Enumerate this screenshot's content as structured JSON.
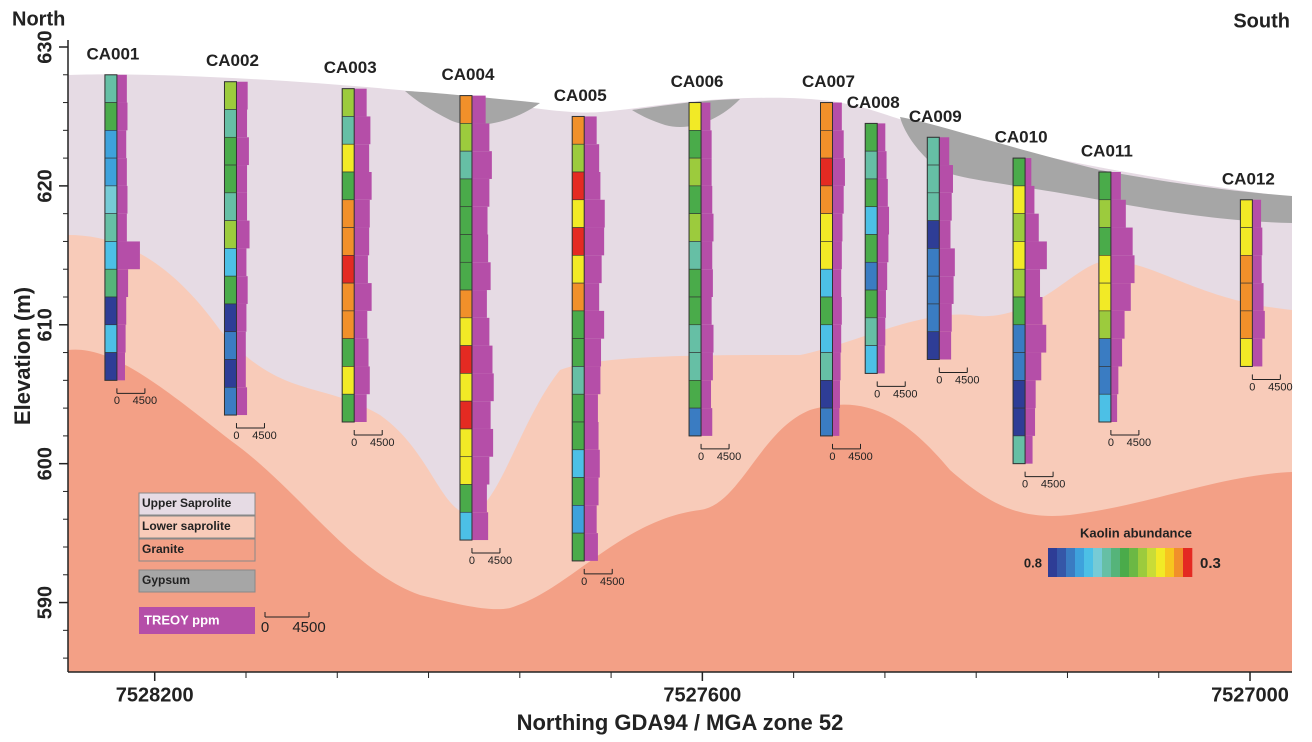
{
  "chart_data": {
    "type": "cross-section",
    "left_label": "North",
    "right_label": "South",
    "xlabel": "Northing GDA94 / MGA zone 52",
    "ylabel": "Elevation (m)",
    "xlim": [
      7528295,
      7526954
    ],
    "xticks": [
      7528200,
      7527600,
      7527000
    ],
    "xminorticks": [
      7528100,
      7528000,
      7527900,
      7527800,
      7527700,
      7527500,
      7527400,
      7527300,
      7527200,
      7527100
    ],
    "ylim": [
      585,
      630
    ],
    "yticks": [
      590,
      600,
      610,
      620,
      630
    ],
    "yminorticks": [
      586,
      588,
      592,
      594,
      596,
      598,
      602,
      604,
      606,
      608,
      612,
      614,
      616,
      618,
      622,
      624,
      626,
      628
    ],
    "layers": [
      {
        "name": "Upper Saprolite",
        "color": "#e6dbe4"
      },
      {
        "name": "Lower saprolite",
        "color": "#f8cbb9"
      },
      {
        "name": "Granite",
        "color": "#f3a086"
      },
      {
        "name": "Gypsum",
        "color": "#a6a6a6"
      }
    ],
    "treoy": {
      "name": "TREOY ppm",
      "color": "#b54ea8",
      "scale": [
        0,
        4500
      ]
    },
    "kaolin_legend": {
      "title": "Kaolin abundance",
      "range": [
        0.8,
        0.3
      ],
      "colors": [
        "#2e3d96",
        "#3557a8",
        "#3a7cc2",
        "#3ea2dc",
        "#4cc0e6",
        "#76cbd6",
        "#66bfa5",
        "#55b47a",
        "#4aab4a",
        "#6cb844",
        "#9ccb3d",
        "#c9dc37",
        "#f2ea26",
        "#f7c51f",
        "#f1902a",
        "#e42a22"
      ]
    },
    "holes": [
      {
        "name": "CA001",
        "northing": 7528248,
        "top": 628,
        "bottom": 606,
        "kaolin": [
          0.6,
          0.53,
          0.7,
          0.7,
          0.63,
          0.6,
          0.67,
          0.57,
          0.8,
          0.67,
          0.8
        ],
        "treoy": [
          1600,
          1700,
          1500,
          1600,
          1700,
          1600,
          3700,
          1800,
          1500,
          1400,
          1300
        ]
      },
      {
        "name": "CA002",
        "northing": 7528117,
        "top": 627.5,
        "bottom": 603.5,
        "kaolin": [
          0.47,
          0.6,
          0.53,
          0.53,
          0.6,
          0.47,
          0.67,
          0.53,
          0.8,
          0.73,
          0.8,
          0.73
        ],
        "treoy": [
          1800,
          1700,
          2000,
          1700,
          1700,
          2100,
          1600,
          1800,
          1600,
          1500,
          1500,
          1700
        ]
      },
      {
        "name": "CA003",
        "northing": 7527988,
        "top": 627,
        "bottom": 603,
        "kaolin": [
          0.47,
          0.6,
          0.4,
          0.53,
          0.33,
          0.33,
          0.3,
          0.33,
          0.32,
          0.53,
          0.4,
          0.53
        ],
        "treoy": [
          2000,
          2600,
          2400,
          2800,
          2500,
          2400,
          2200,
          2800,
          2100,
          2300,
          2500,
          2000
        ]
      },
      {
        "name": "CA004",
        "northing": 7527859,
        "top": 626.5,
        "bottom": 594.5,
        "kaolin": [
          0.33,
          0.47,
          0.6,
          0.53,
          0.53,
          0.53,
          0.53,
          0.33,
          0.4,
          0.3,
          0.4,
          0.3,
          0.4,
          0.4,
          0.53,
          0.67
        ],
        "treoy": [
          2200,
          2800,
          3200,
          2800,
          2500,
          2600,
          3000,
          2400,
          2800,
          3300,
          3500,
          3000,
          3400,
          2800,
          2400,
          2600
        ]
      },
      {
        "name": "CA005",
        "northing": 7527736,
        "top": 625,
        "bottom": 593,
        "kaolin": [
          0.33,
          0.47,
          0.3,
          0.4,
          0.3,
          0.4,
          0.33,
          0.53,
          0.53,
          0.6,
          0.53,
          0.53,
          0.67,
          0.53,
          0.7,
          0.53
        ],
        "treoy": [
          2000,
          2400,
          2600,
          3300,
          3200,
          2800,
          2400,
          3200,
          2700,
          2600,
          2200,
          2300,
          2500,
          2300,
          2000,
          2200
        ]
      },
      {
        "name": "CA006",
        "northing": 7527608,
        "top": 626,
        "bottom": 602,
        "kaolin": [
          0.4,
          0.53,
          0.47,
          0.53,
          0.47,
          0.6,
          0.53,
          0.53,
          0.6,
          0.6,
          0.53,
          0.73
        ],
        "treoy": [
          1500,
          1700,
          1700,
          1800,
          2000,
          1800,
          1900,
          1700,
          2000,
          1900,
          1600,
          1800
        ]
      },
      {
        "name": "CA007",
        "northing": 7527464,
        "top": 626,
        "bottom": 602,
        "kaolin": [
          0.33,
          0.32,
          0.3,
          0.33,
          0.4,
          0.4,
          0.67,
          0.53,
          0.67,
          0.6,
          0.8,
          0.73
        ],
        "treoy": [
          1500,
          1800,
          2000,
          1800,
          1600,
          1500,
          1400,
          1500,
          1400,
          1300,
          1200,
          1100
        ]
      },
      {
        "name": "CA008",
        "northing": 7527415,
        "top": 624.5,
        "bottom": 606.5,
        "kaolin": [
          0.53,
          0.6,
          0.53,
          0.67,
          0.53,
          0.73,
          0.53,
          0.6,
          0.67
        ],
        "treoy": [
          1300,
          1500,
          1700,
          1900,
          1800,
          1600,
          1400,
          1300,
          1200
        ]
      },
      {
        "name": "CA009",
        "northing": 7527347,
        "top": 623.5,
        "bottom": 607.5,
        "kaolin": [
          0.6,
          0.6,
          0.6,
          0.8,
          0.73,
          0.73,
          0.73,
          0.8
        ],
        "treoy": [
          1600,
          2200,
          2000,
          1800,
          2500,
          2300,
          2000,
          1900
        ]
      },
      {
        "name": "CA010",
        "northing": 7527253,
        "top": 622,
        "bottom": 600,
        "kaolin": [
          0.53,
          0.4,
          0.47,
          0.4,
          0.47,
          0.53,
          0.73,
          0.73,
          0.8,
          0.8,
          0.6
        ],
        "treoy": [
          1000,
          1500,
          2200,
          3500,
          2400,
          2800,
          3400,
          2600,
          1700,
          1600,
          1200
        ]
      },
      {
        "name": "CA011",
        "northing": 7527159,
        "top": 621,
        "bottom": 603,
        "kaolin": [
          0.53,
          0.47,
          0.53,
          0.4,
          0.4,
          0.47,
          0.73,
          0.73,
          0.67
        ],
        "treoy": [
          1600,
          2400,
          3500,
          3800,
          3200,
          2200,
          1800,
          1200,
          1000
        ]
      },
      {
        "name": "CA012",
        "northing": 7527004,
        "top": 619,
        "bottom": 607,
        "kaolin": [
          0.4,
          0.4,
          0.33,
          0.33,
          0.33,
          0.4
        ],
        "treoy": [
          1400,
          1600,
          1500,
          1800,
          2000,
          1600
        ]
      }
    ]
  }
}
